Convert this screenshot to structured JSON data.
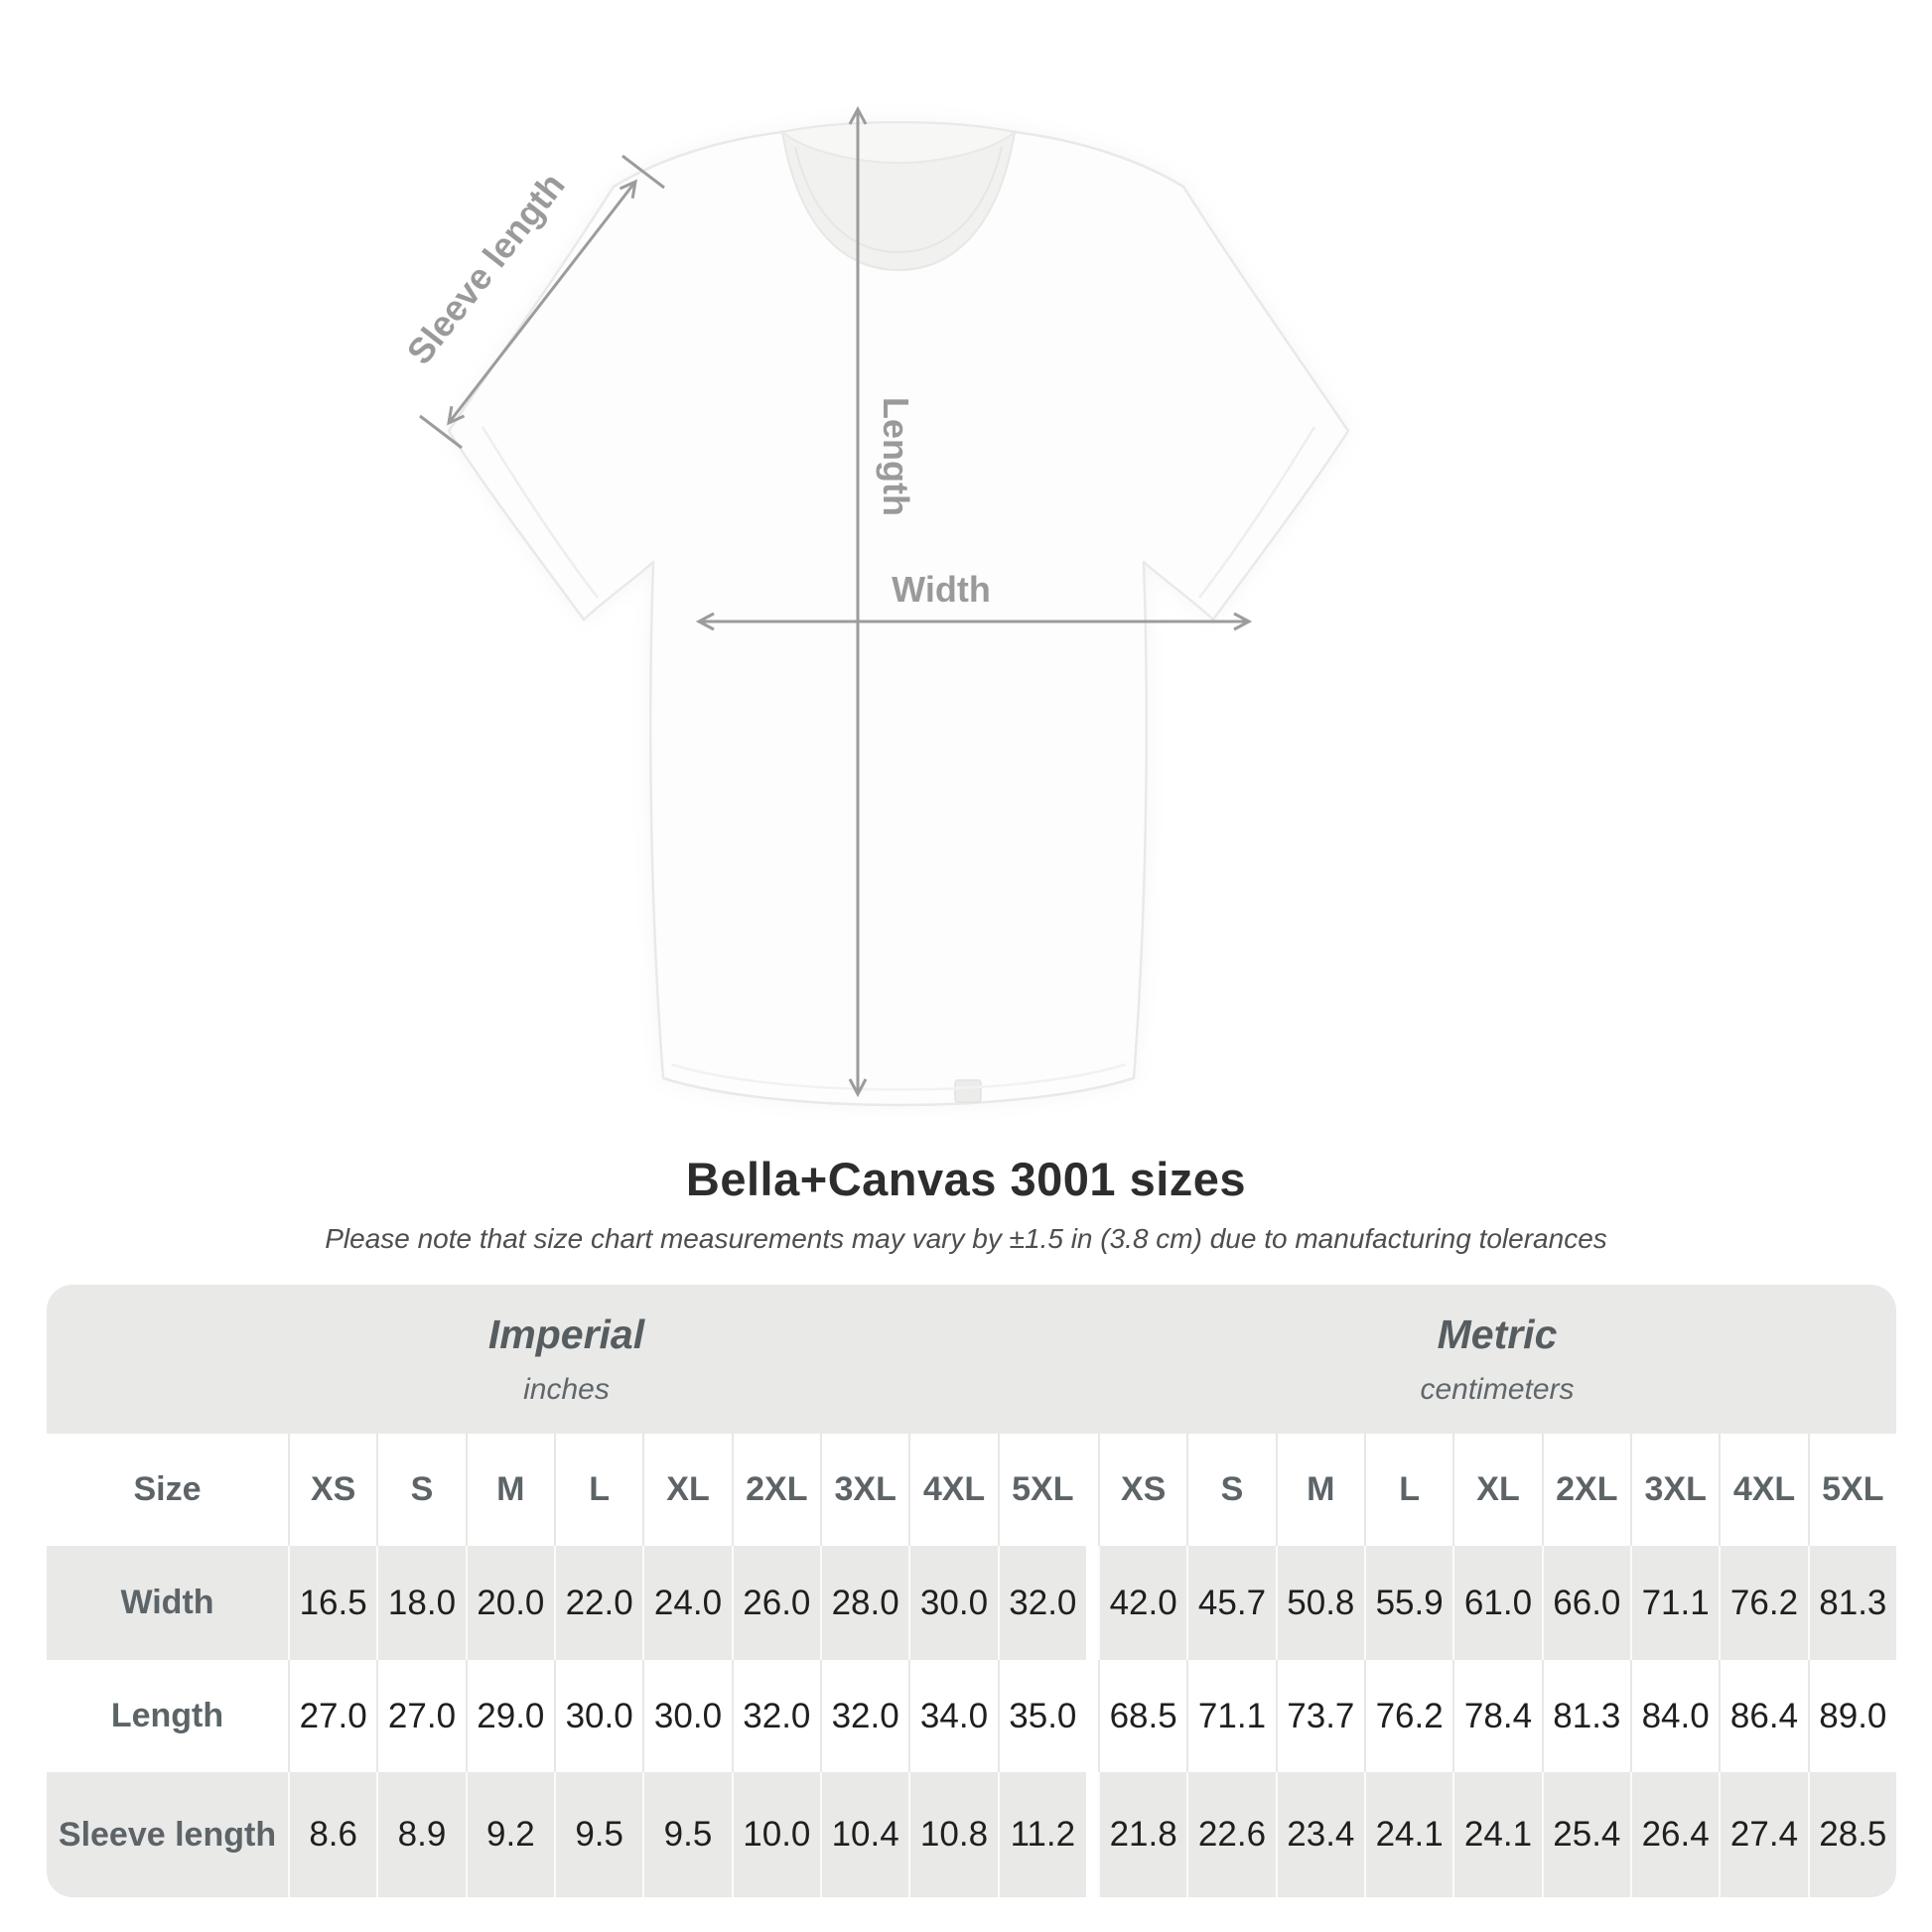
{
  "header": {
    "title": "Bella+Canvas 3001 sizes",
    "subtitle": "Please note that size chart measurements may vary by ±1.5 in (3.8 cm) due to manufacturing tolerances"
  },
  "diagram": {
    "labels": {
      "sleeve": "Sleeve length",
      "length": "Length",
      "width": "Width"
    },
    "arrow_color": "#9c9c9c",
    "label_color": "#9a9a9a",
    "shirt_outline_color": "#e9e9e8"
  },
  "table": {
    "groups": [
      {
        "name": "Imperial",
        "unit": "inches"
      },
      {
        "name": "Metric",
        "unit": "centimeters"
      }
    ],
    "size_label": "Size",
    "sizes": [
      "XS",
      "S",
      "M",
      "L",
      "XL",
      "2XL",
      "3XL",
      "4XL",
      "5XL"
    ],
    "rows": [
      {
        "label": "Width",
        "imperial": [
          "16.5",
          "18.0",
          "20.0",
          "22.0",
          "24.0",
          "26.0",
          "28.0",
          "30.0",
          "32.0"
        ],
        "metric": [
          "42.0",
          "45.7",
          "50.8",
          "55.9",
          "61.0",
          "66.0",
          "71.1",
          "76.2",
          "81.3"
        ]
      },
      {
        "label": "Length",
        "imperial": [
          "27.0",
          "27.0",
          "29.0",
          "30.0",
          "30.0",
          "32.0",
          "32.0",
          "34.0",
          "35.0"
        ],
        "metric": [
          "68.5",
          "71.1",
          "73.7",
          "76.2",
          "78.4",
          "81.3",
          "84.0",
          "86.4",
          "89.0"
        ]
      },
      {
        "label": "Sleeve length",
        "imperial": [
          "8.6",
          "8.9",
          "9.2",
          "9.5",
          "9.5",
          "10.0",
          "10.4",
          "10.8",
          "11.2"
        ],
        "metric": [
          "21.8",
          "22.6",
          "23.4",
          "24.1",
          "24.1",
          "25.4",
          "26.4",
          "27.4",
          "28.5"
        ]
      }
    ],
    "colors": {
      "band": "#e9e9e8",
      "label_text": "#5d6468",
      "value_text": "#1f1f1f"
    }
  },
  "chart_data": {
    "type": "table",
    "title": "Bella+Canvas 3001 sizes",
    "note": "Size chart measurements may vary by ±1.5 in (3.8 cm) due to manufacturing tolerances",
    "column_groups": [
      {
        "name": "Imperial",
        "unit": "inches"
      },
      {
        "name": "Metric",
        "unit": "centimeters"
      }
    ],
    "sizes": [
      "XS",
      "S",
      "M",
      "L",
      "XL",
      "2XL",
      "3XL",
      "4XL",
      "5XL"
    ],
    "rows": [
      {
        "measurement": "Width",
        "imperial_in": [
          16.5,
          18.0,
          20.0,
          22.0,
          24.0,
          26.0,
          28.0,
          30.0,
          32.0
        ],
        "metric_cm": [
          42.0,
          45.7,
          50.8,
          55.9,
          61.0,
          66.0,
          71.1,
          76.2,
          81.3
        ]
      },
      {
        "measurement": "Length",
        "imperial_in": [
          27.0,
          27.0,
          29.0,
          30.0,
          30.0,
          32.0,
          32.0,
          34.0,
          35.0
        ],
        "metric_cm": [
          68.5,
          71.1,
          73.7,
          76.2,
          78.4,
          81.3,
          84.0,
          86.4,
          89.0
        ]
      },
      {
        "measurement": "Sleeve length",
        "imperial_in": [
          8.6,
          8.9,
          9.2,
          9.5,
          9.5,
          10.0,
          10.4,
          10.8,
          11.2
        ],
        "metric_cm": [
          21.8,
          22.6,
          23.4,
          24.1,
          24.1,
          25.4,
          26.4,
          27.4,
          28.5
        ]
      }
    ]
  }
}
